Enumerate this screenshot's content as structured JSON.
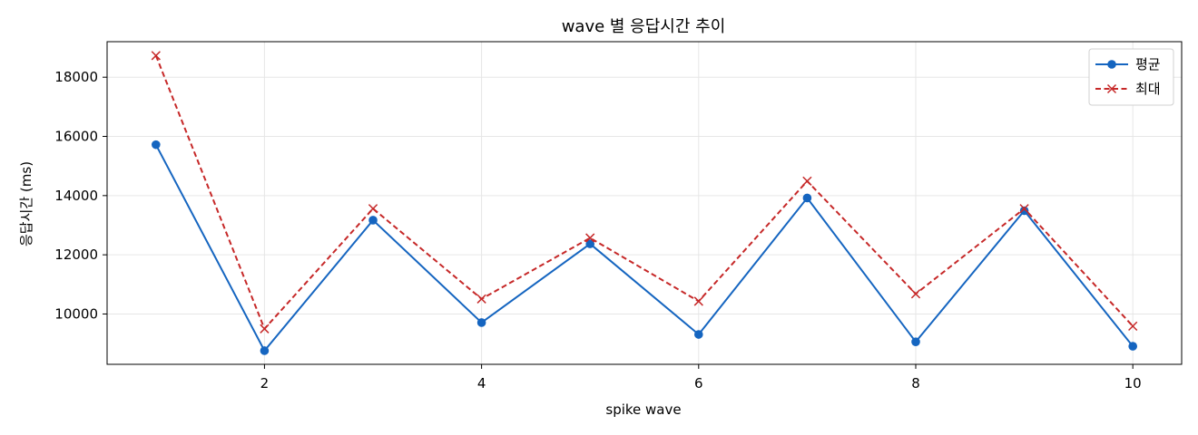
{
  "chart_data": {
    "type": "line",
    "title": "wave 별 응답시간 추이",
    "xlabel": "spike wave",
    "ylabel": "응답시간 (ms)",
    "x": [
      1,
      2,
      3,
      4,
      5,
      6,
      7,
      8,
      9,
      10
    ],
    "xlim": [
      0.55,
      10.45
    ],
    "ylim": [
      8300,
      19200
    ],
    "xticks": [
      2,
      4,
      6,
      8,
      10
    ],
    "yticks": [
      10000,
      12000,
      14000,
      16000,
      18000
    ],
    "grid": true,
    "legend_position": "top-right",
    "series": [
      {
        "name": "평균",
        "color": "#1565c0",
        "line_style": "solid",
        "marker": "circle",
        "values": [
          15720,
          8760,
          13170,
          9710,
          12370,
          9310,
          13920,
          9060,
          13490,
          8910
        ]
      },
      {
        "name": "최대",
        "color": "#c62828",
        "line_style": "dashed",
        "marker": "x",
        "values": [
          18730,
          9500,
          13560,
          10510,
          12570,
          10430,
          14490,
          10680,
          13560,
          9590
        ]
      }
    ]
  }
}
